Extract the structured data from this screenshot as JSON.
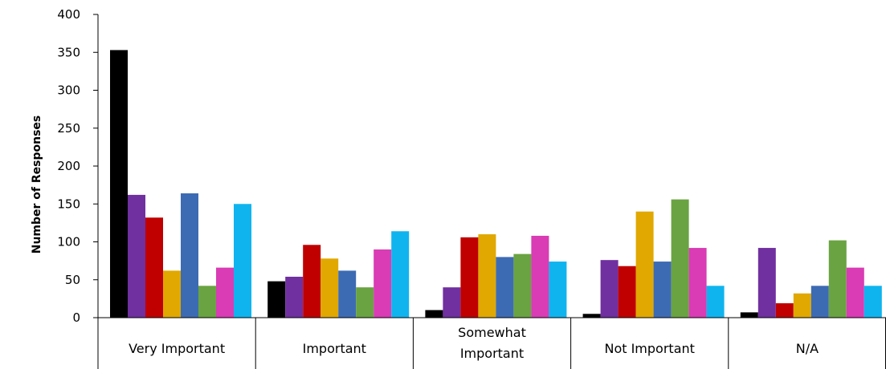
{
  "chart_data": {
    "type": "bar",
    "ylabel": "Number of Responses",
    "xlabel": "",
    "ylim": [
      0,
      400
    ],
    "yticks": [
      0,
      50,
      100,
      150,
      200,
      250,
      300,
      350,
      400
    ],
    "grid": false,
    "categories": [
      [
        "Very Important"
      ],
      [
        "Important"
      ],
      [
        "Somewhat",
        "Important"
      ],
      [
        "Not Important"
      ],
      [
        "N/A"
      ]
    ],
    "series": [
      {
        "color": "#000000",
        "values": [
          353,
          48,
          10,
          5,
          7
        ]
      },
      {
        "color": "#7030a0",
        "values": [
          162,
          54,
          40,
          76,
          92
        ]
      },
      {
        "color": "#c00000",
        "values": [
          132,
          96,
          106,
          68,
          19
        ]
      },
      {
        "color": "#e0a800",
        "values": [
          62,
          78,
          110,
          140,
          32
        ]
      },
      {
        "color": "#3d6bb3",
        "values": [
          164,
          62,
          80,
          74,
          42
        ]
      },
      {
        "color": "#6aa342",
        "values": [
          42,
          40,
          84,
          156,
          102
        ]
      },
      {
        "color": "#d93cb4",
        "values": [
          66,
          90,
          108,
          92,
          66
        ]
      },
      {
        "color": "#0fb4ef",
        "values": [
          150,
          114,
          74,
          42,
          42
        ]
      }
    ]
  }
}
